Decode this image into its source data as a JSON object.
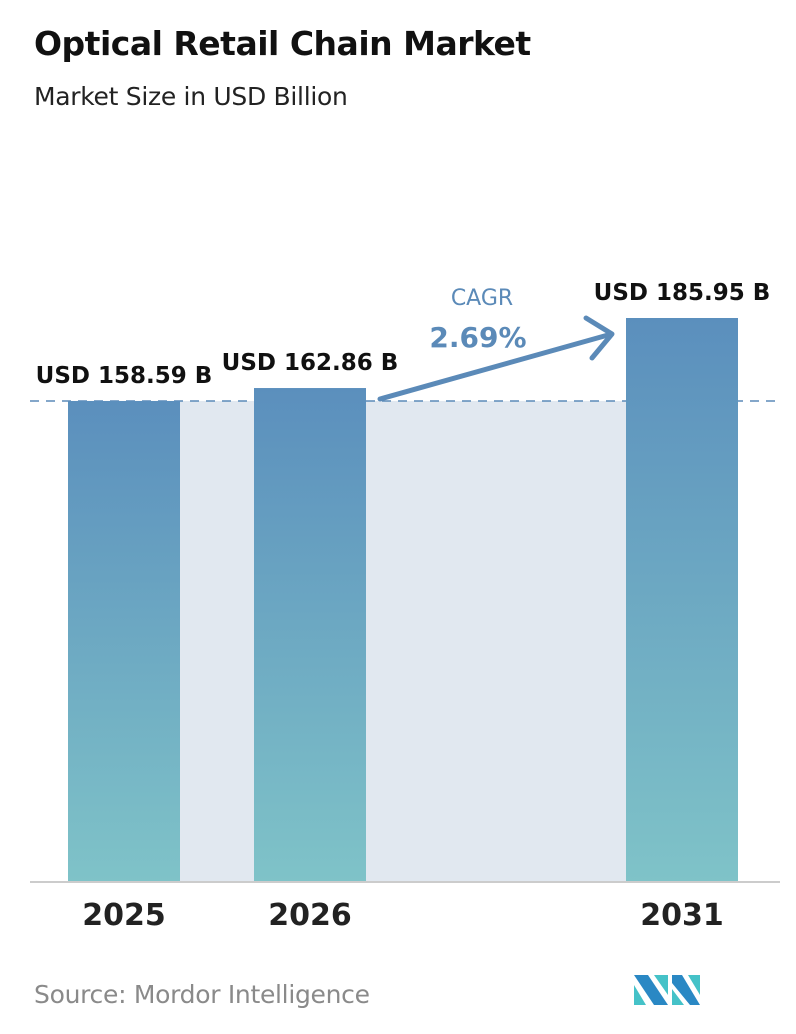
{
  "chart_data": {
    "type": "bar",
    "title": "Optical Retail Chain Market",
    "subtitle": "Market Size in USD Billion",
    "categories": [
      "2025",
      "2026",
      "2031"
    ],
    "values": [
      158.59,
      162.86,
      185.95
    ],
    "data_labels": [
      "USD 158.59 B",
      "USD 162.86 B",
      "USD 185.95 B"
    ],
    "annotation": {
      "label": "CAGR",
      "value": "2.69%"
    },
    "xlabel": "",
    "ylabel": "",
    "ylim": [
      0,
      185.95
    ],
    "grid": false,
    "colors": {
      "bar_top": "#5b8fbd",
      "bar_bottom": "#7fc3c8",
      "cagr": "#5b8ab8",
      "shade": "#e1e8f0"
    }
  },
  "source": "Source:  Mordor Intelligence",
  "logo_text": "Mordor Intelligence"
}
